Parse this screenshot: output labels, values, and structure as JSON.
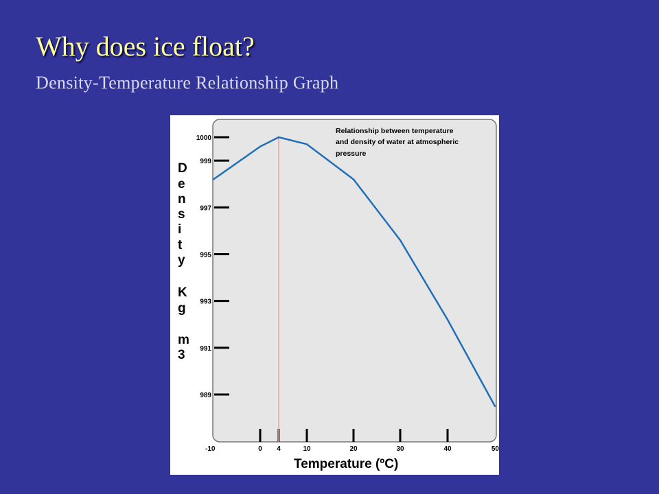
{
  "slide": {
    "title": "Why does ice float?",
    "subtitle": "Density-Temperature Relationship Graph"
  },
  "chart_data": {
    "type": "line",
    "annotation": [
      "Relationship between temperature",
      "and density of water at atmospheric",
      "pressure"
    ],
    "xlabel": "Temperature (ºC)",
    "ylabel_letters": [
      "D",
      "e",
      "n",
      "s",
      "i",
      "t",
      "y",
      "K",
      "g",
      "m",
      "3"
    ],
    "ylabel": "Density Kg m3",
    "x_ticks": [
      -10,
      0,
      4,
      10,
      20,
      30,
      40,
      50
    ],
    "y_ticks": [
      1000,
      999,
      997,
      995,
      993,
      991,
      989
    ],
    "xlim": [
      -10,
      50
    ],
    "grid": false,
    "reference_line": {
      "x": 4,
      "color": "#f2a0a0"
    },
    "series": [
      {
        "color": "#1f6fb8",
        "x": [
          -10,
          0,
          4,
          10,
          20,
          30,
          40,
          50
        ],
        "y": [
          998.2,
          999.6,
          1000.0,
          999.7,
          998.2,
          995.6,
          992.2,
          988.5
        ]
      }
    ]
  }
}
